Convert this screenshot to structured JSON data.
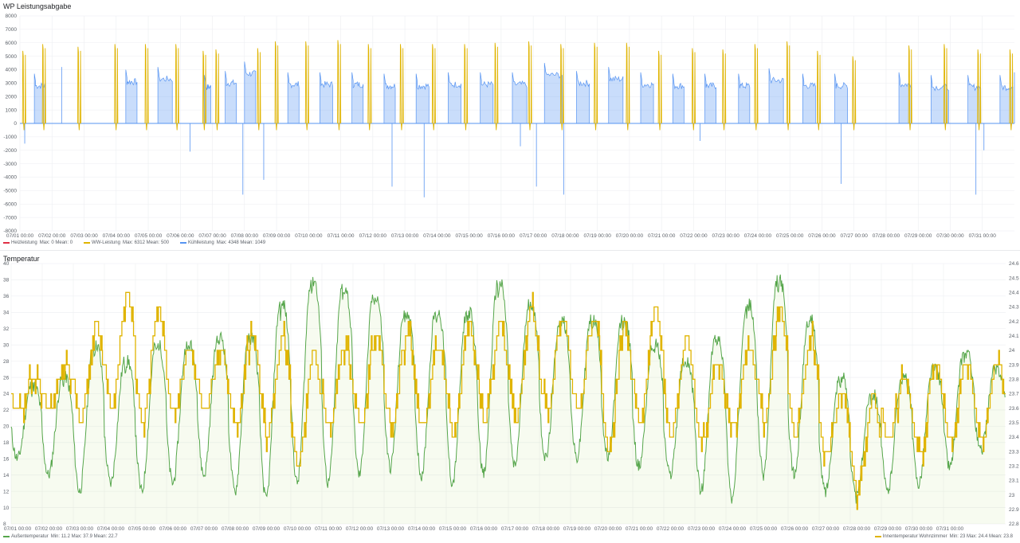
{
  "panels": {
    "power_title": "WP Leistungsabgabe",
    "temp_title": "Temperatur"
  },
  "legends": {
    "power": [
      {
        "name": "Heizleistung",
        "color": "#e02f44",
        "stats": "Max: 0   Mean: 0"
      },
      {
        "name": "WW-Leistung",
        "color": "#e0b400",
        "stats": "Max: 6312   Mean: 500"
      },
      {
        "name": "Kühlleistung",
        "color": "#5794f2",
        "stats": "Max: 4348   Mean: 1049"
      }
    ],
    "temp_left": {
      "name": "Außentemperatur",
      "color": "#56a64b",
      "stats": "Min: 11.2   Max: 37.9   Mean: 22.7"
    },
    "temp_right": {
      "name": "Innentemperatur Wohnzimmer",
      "color": "#e0b400",
      "stats": "Min: 23   Max: 24.4   Mean: 23.8"
    }
  },
  "chart_data": [
    {
      "type": "area",
      "title": "WP Leistungsabgabe",
      "ylim": [
        -8000,
        8000
      ],
      "y_ticks": [
        "8000",
        "7000",
        "6000",
        "5000",
        "4000",
        "3000",
        "2000",
        "1000",
        "0",
        "-1000",
        "-2000",
        "-3000",
        "-4000",
        "-5000",
        "-6000",
        "-7000",
        "-8000"
      ],
      "x_ticks": [
        "07/01 00:00",
        "07/02 00:00",
        "07/03 00:00",
        "07/04 00:00",
        "07/05 00:00",
        "07/06 00:00",
        "07/07 00:00",
        "07/08 00:00",
        "07/09 00:00",
        "07/10 00:00",
        "07/11 00:00",
        "07/12 00:00",
        "07/13 00:00",
        "07/14 00:00",
        "07/15 00:00",
        "07/16 00:00",
        "07/17 00:00",
        "07/18 00:00",
        "07/19 00:00",
        "07/20 00:00",
        "07/21 00:00",
        "07/22 00:00",
        "07/23 00:00",
        "07/24 00:00",
        "07/25 00:00",
        "07/26 00:00",
        "07/27 00:00",
        "07/28 00:00",
        "07/29 00:00",
        "07/30 00:00",
        "07/31 00:00"
      ],
      "x_unit": "day of July",
      "series": [
        {
          "name": "Kühlleistung",
          "color": "#5794f2",
          "blocks": [
            {
              "start": 0.45,
              "end": 0.8,
              "value": 2800
            },
            {
              "start": 3.3,
              "end": 3.65,
              "value": 3100
            },
            {
              "start": 4.3,
              "end": 4.75,
              "value": 3300
            },
            {
              "start": 5.75,
              "end": 5.95,
              "value": 2700
            },
            {
              "start": 6.4,
              "end": 6.75,
              "value": 3000
            },
            {
              "start": 7.0,
              "end": 7.35,
              "value": 3700
            },
            {
              "start": 8.35,
              "end": 8.7,
              "value": 2900
            },
            {
              "start": 9.35,
              "end": 9.75,
              "value": 2900
            },
            {
              "start": 10.35,
              "end": 10.7,
              "value": 2900
            },
            {
              "start": 11.35,
              "end": 11.7,
              "value": 2800
            },
            {
              "start": 12.35,
              "end": 12.75,
              "value": 2800
            },
            {
              "start": 13.35,
              "end": 13.75,
              "value": 2900
            },
            {
              "start": 14.35,
              "end": 14.75,
              "value": 2900
            },
            {
              "start": 15.35,
              "end": 15.8,
              "value": 2900
            },
            {
              "start": 16.35,
              "end": 16.9,
              "value": 3600
            },
            {
              "start": 17.35,
              "end": 17.75,
              "value": 3000
            },
            {
              "start": 18.35,
              "end": 18.8,
              "value": 3300
            },
            {
              "start": 19.35,
              "end": 19.75,
              "value": 2900
            },
            {
              "start": 20.35,
              "end": 20.7,
              "value": 2800
            },
            {
              "start": 21.35,
              "end": 21.7,
              "value": 2800
            },
            {
              "start": 22.4,
              "end": 22.75,
              "value": 2800
            },
            {
              "start": 23.35,
              "end": 23.8,
              "value": 3200
            },
            {
              "start": 24.4,
              "end": 24.8,
              "value": 2800
            },
            {
              "start": 25.4,
              "end": 25.8,
              "value": 2800
            },
            {
              "start": 27.4,
              "end": 27.8,
              "value": 2900
            },
            {
              "start": 28.4,
              "end": 28.95,
              "value": 2700
            },
            {
              "start": 29.55,
              "end": 29.95,
              "value": 2700
            },
            {
              "start": 30.55,
              "end": 30.95,
              "value": 2700
            }
          ],
          "spikes": [
            {
              "x": 0.15,
              "value": -1500
            },
            {
              "x": 1.3,
              "value": 4200
            },
            {
              "x": 5.3,
              "value": -2100
            },
            {
              "x": 6.95,
              "value": -5300
            },
            {
              "x": 7.6,
              "value": -4200
            },
            {
              "x": 11.6,
              "value": -4700
            },
            {
              "x": 12.6,
              "value": -5500
            },
            {
              "x": 15.6,
              "value": -1700
            },
            {
              "x": 16.1,
              "value": -4700
            },
            {
              "x": 16.95,
              "value": -5300
            },
            {
              "x": 21.2,
              "value": -1300
            },
            {
              "x": 25.6,
              "value": -4500
            },
            {
              "x": 29.8,
              "value": -5300
            },
            {
              "x": 30.05,
              "value": -2000
            },
            {
              "x": 31.0,
              "value": 3800
            }
          ]
        },
        {
          "name": "WW-Leistung",
          "color": "#e0b400",
          "bursts": [
            {
              "x": 0.08,
              "value": 5400
            },
            {
              "x": 0.7,
              "value": 5900
            },
            {
              "x": 1.8,
              "value": 5700
            },
            {
              "x": 2.95,
              "value": 5900
            },
            {
              "x": 3.9,
              "value": 5900
            },
            {
              "x": 4.85,
              "value": 5900
            },
            {
              "x": 5.7,
              "value": 5400
            },
            {
              "x": 6.1,
              "value": 5500
            },
            {
              "x": 7.4,
              "value": 5600
            },
            {
              "x": 7.95,
              "value": 6100
            },
            {
              "x": 8.9,
              "value": 6100
            },
            {
              "x": 9.9,
              "value": 6200
            },
            {
              "x": 10.85,
              "value": 5900
            },
            {
              "x": 11.85,
              "value": 5900
            },
            {
              "x": 12.85,
              "value": 5900
            },
            {
              "x": 13.85,
              "value": 5900
            },
            {
              "x": 14.8,
              "value": 6000
            },
            {
              "x": 15.85,
              "value": 6100
            },
            {
              "x": 16.85,
              "value": 5900
            },
            {
              "x": 17.9,
              "value": 6000
            },
            {
              "x": 18.9,
              "value": 6000
            },
            {
              "x": 19.9,
              "value": 5400
            },
            {
              "x": 20.95,
              "value": 5600
            },
            {
              "x": 21.9,
              "value": 5500
            },
            {
              "x": 22.9,
              "value": 5900
            },
            {
              "x": 23.9,
              "value": 6100
            },
            {
              "x": 24.85,
              "value": 5400
            },
            {
              "x": 25.95,
              "value": 5000
            },
            {
              "x": 27.7,
              "value": 5800
            },
            {
              "x": 28.8,
              "value": 5900
            },
            {
              "x": 29.85,
              "value": 5500
            },
            {
              "x": 30.85,
              "value": 5500
            }
          ]
        },
        {
          "name": "Heizleistung",
          "color": "#e02f44",
          "values_constant": 0
        }
      ]
    },
    {
      "type": "line",
      "title": "Temperatur",
      "ylim_left": [
        8,
        40
      ],
      "ylim_right": [
        22.8,
        24.6
      ],
      "y_ticks_left": [
        "40",
        "38",
        "36",
        "34",
        "32",
        "30",
        "28",
        "26",
        "24",
        "22",
        "20",
        "18",
        "16",
        "14",
        "12",
        "10",
        "8"
      ],
      "y_ticks_right": [
        "24.6",
        "24.5",
        "24.4",
        "24.3",
        "24.2",
        "24.1",
        "24",
        "23.9",
        "23.8",
        "23.7",
        "23.6",
        "23.5",
        "23.4",
        "23.3",
        "23.2",
        "23.1",
        "23",
        "22.9",
        "22.8"
      ],
      "x_ticks": [
        "07/01 00:00",
        "07/02 00:00",
        "07/03 00:00",
        "07/04 00:00",
        "07/05 00:00",
        "07/06 00:00",
        "07/07 00:00",
        "07/08 00:00",
        "07/09 00:00",
        "07/10 00:00",
        "07/11 00:00",
        "07/12 00:00",
        "07/13 00:00",
        "07/14 00:00",
        "07/15 00:00",
        "07/16 00:00",
        "07/17 00:00",
        "07/18 00:00",
        "07/19 00:00",
        "07/20 00:00",
        "07/21 00:00",
        "07/22 00:00",
        "07/23 00:00",
        "07/24 00:00",
        "07/25 00:00",
        "07/26 00:00",
        "07/27 00:00",
        "07/28 00:00",
        "07/29 00:00",
        "07/30 00:00",
        "07/31 00:00"
      ],
      "x_unit": "day of July",
      "series": [
        {
          "name": "Außentemperatur",
          "color": "#56a64b",
          "axis": "left",
          "daily": [
            {
              "min": 16,
              "max": 25
            },
            {
              "min": 14,
              "max": 26
            },
            {
              "min": 12,
              "max": 30
            },
            {
              "min": 13,
              "max": 28
            },
            {
              "min": 12,
              "max": 30
            },
            {
              "min": 13,
              "max": 30
            },
            {
              "min": 14,
              "max": 31
            },
            {
              "min": 12,
              "max": 31
            },
            {
              "min": 11,
              "max": 35
            },
            {
              "min": 13,
              "max": 38
            },
            {
              "min": 13,
              "max": 37
            },
            {
              "min": 14,
              "max": 36
            },
            {
              "min": 15,
              "max": 34
            },
            {
              "min": 14,
              "max": 34
            },
            {
              "min": 13,
              "max": 34
            },
            {
              "min": 14,
              "max": 37.5
            },
            {
              "min": 15,
              "max": 35
            },
            {
              "min": 16,
              "max": 33
            },
            {
              "min": 16,
              "max": 33
            },
            {
              "min": 16,
              "max": 33
            },
            {
              "min": 15,
              "max": 30
            },
            {
              "min": 14,
              "max": 28
            },
            {
              "min": 12,
              "max": 31
            },
            {
              "min": 11,
              "max": 35
            },
            {
              "min": 14,
              "max": 37.9
            },
            {
              "min": 14,
              "max": 33
            },
            {
              "min": 12,
              "max": 26
            },
            {
              "min": 11.2,
              "max": 24
            },
            {
              "min": 12,
              "max": 26
            },
            {
              "min": 13,
              "max": 27
            },
            {
              "min": 15,
              "max": 29
            },
            {
              "min": 17,
              "max": 27
            }
          ]
        },
        {
          "name": "Innentemperatur Wohnzimmer",
          "color": "#e0b400",
          "axis": "right",
          "daily": [
            {
              "min": 23.6,
              "max": 23.8
            },
            {
              "min": 23.6,
              "max": 23.9
            },
            {
              "min": 23.5,
              "max": 24.2
            },
            {
              "min": 23.6,
              "max": 24.4
            },
            {
              "min": 23.5,
              "max": 24.3
            },
            {
              "min": 23.6,
              "max": 24.0
            },
            {
              "min": 23.6,
              "max": 24.0
            },
            {
              "min": 23.5,
              "max": 24.1
            },
            {
              "min": 23.4,
              "max": 24.1
            },
            {
              "min": 23.2,
              "max": 24.0
            },
            {
              "min": 23.5,
              "max": 24.0
            },
            {
              "min": 23.5,
              "max": 24.1
            },
            {
              "min": 23.5,
              "max": 24.1
            },
            {
              "min": 23.5,
              "max": 24.0
            },
            {
              "min": 23.4,
              "max": 24.2
            },
            {
              "min": 23.5,
              "max": 24.2
            },
            {
              "min": 23.5,
              "max": 24.3
            },
            {
              "min": 23.6,
              "max": 24.2
            },
            {
              "min": 23.6,
              "max": 24.2
            },
            {
              "min": 23.3,
              "max": 24.2
            },
            {
              "min": 23.5,
              "max": 24.3
            },
            {
              "min": 23.4,
              "max": 24.1
            },
            {
              "min": 23.4,
              "max": 23.9
            },
            {
              "min": 23.5,
              "max": 24.0
            },
            {
              "min": 23.5,
              "max": 24.3
            },
            {
              "min": 23.4,
              "max": 24.1
            },
            {
              "min": 23.3,
              "max": 23.7
            },
            {
              "min": 23.0,
              "max": 23.7
            },
            {
              "min": 23.4,
              "max": 23.8
            },
            {
              "min": 23.3,
              "max": 23.9
            },
            {
              "min": 23.4,
              "max": 23.9
            },
            {
              "min": 23.4,
              "max": 23.9
            }
          ]
        }
      ]
    }
  ]
}
